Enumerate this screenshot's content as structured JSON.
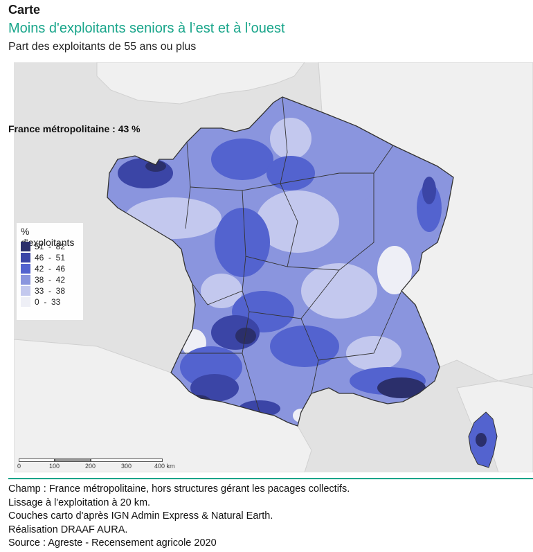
{
  "header": {
    "kicker": "Carte",
    "title": "Moins d'exploitants seniors à l’est et à l’ouest",
    "subtitle": "Part des exploitants de 55 ans ou plus"
  },
  "map": {
    "national_note": "France métropolitaine : 43 %",
    "legend": {
      "title": "% d'exploitants",
      "classes": [
        {
          "label": "51  -  82",
          "color": "#2b2f6b"
        },
        {
          "label": "46  -  51",
          "color": "#3b45a6"
        },
        {
          "label": "42  -  46",
          "color": "#5363cf"
        },
        {
          "label": "38  -  42",
          "color": "#8a95de"
        },
        {
          "label": "33  -  38",
          "color": "#c3c8ee"
        },
        {
          "label": "0  -  33",
          "color": "#eeeff6"
        }
      ]
    },
    "scale": {
      "ticks": [
        "0",
        "100",
        "200",
        "300",
        "400 km"
      ]
    },
    "colors": {
      "sea": "#e2e2e2",
      "land_other": "#f0f0f0",
      "border": "#333333",
      "accent": "#18a58a"
    }
  },
  "footer": {
    "lines": [
      "Champ : France métropolitaine, hors structures gérant les pacages collectifs.",
      "Lissage à l'exploitation à 20 km.",
      "Couches carto d'après IGN Admin Express & Natural Earth.",
      "Réalisation DRAAF AURA.",
      "Source : Agreste - Recensement agricole 2020"
    ]
  }
}
